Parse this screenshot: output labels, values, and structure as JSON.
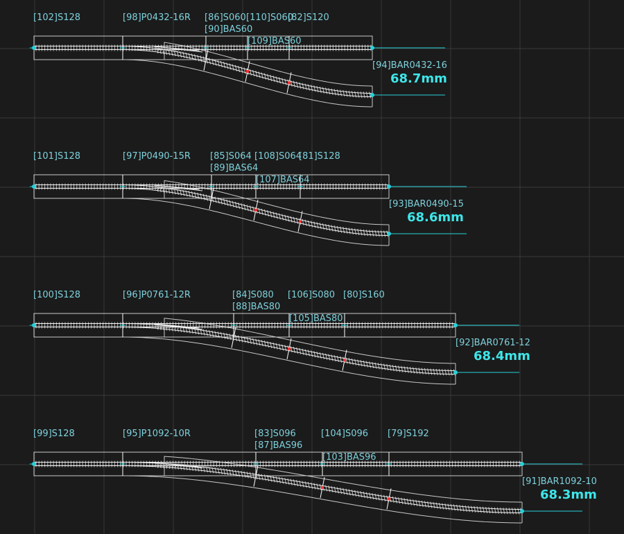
{
  "colors": {
    "background": "#1b1b1b",
    "grid": "#3a3a3a",
    "outline": "#c9c9c9",
    "rail": "#f2f2f2",
    "accent_cyan": "#27d0d8",
    "label": "#7fd1dc",
    "measurement": "#3ee6ea",
    "marker_red": "#ff3030"
  },
  "layouts": [
    {
      "straight_label": "[102]S128",
      "turnout_label": "[98]P0432-16R",
      "diverge_top_labels": [
        "[86]S060",
        "[110]S060",
        "[82]S120"
      ],
      "base_label": "[90]BAS60",
      "inner_base_label": "[109]BAS60",
      "end_label": "[94]BAR0432-16",
      "measurement": "68.7mm"
    },
    {
      "straight_label": "[101]S128",
      "turnout_label": "[97]P0490-15R",
      "diverge_top_labels": [
        "[85]S064",
        "[108]S064",
        "[81]S128"
      ],
      "base_label": "[89]BAS64",
      "inner_base_label": "[107]BAS64",
      "end_label": "[93]BAR0490-15",
      "measurement": "68.6mm"
    },
    {
      "straight_label": "[100]S128",
      "turnout_label": "[96]P0761-12R",
      "diverge_top_labels": [
        "[84]S080",
        "[106]S080",
        "[80]S160"
      ],
      "base_label": "[88]BAS80",
      "inner_base_label": "[105]BAS80",
      "end_label": "[92]BAR0761-12",
      "measurement": "68.4mm"
    },
    {
      "straight_label": "[99]S128",
      "turnout_label": "[95]P1092-10R",
      "diverge_top_labels": [
        "[83]S096",
        "[104]S096",
        "[79]S192"
      ],
      "base_label": "[87]BAS96",
      "inner_base_label": "[103]BAS96",
      "end_label": "[91]BAR1092-10",
      "measurement": "68.3mm"
    }
  ]
}
